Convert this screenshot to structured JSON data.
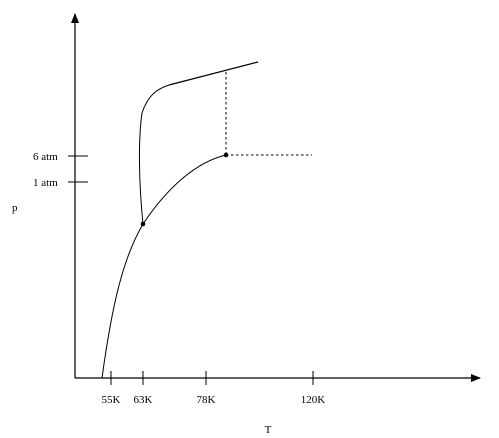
{
  "diagram": {
    "axes": {
      "x_label": "T",
      "y_label": "p"
    },
    "x_ticks": [
      "55K",
      "63K",
      "78K",
      "120K"
    ],
    "y_ticks": [
      "6 atm",
      "1 atm"
    ]
  }
}
